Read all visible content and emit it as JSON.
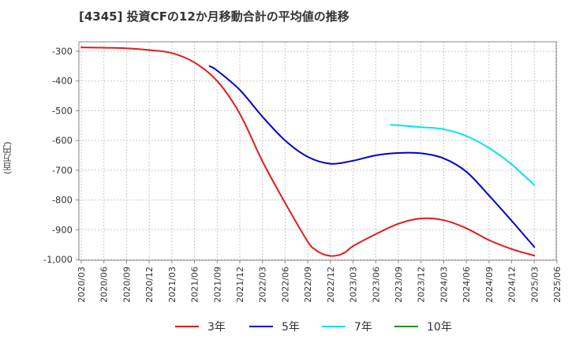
{
  "chart_data": {
    "type": "line",
    "title": "[4345]  投資CFの12か月移動合計の平均値の推移",
    "ylabel": "(百万円)",
    "ylim": [
      -1000,
      -270
    ],
    "yticks": [
      -300,
      -400,
      -500,
      -600,
      -700,
      -800,
      -900,
      -1000
    ],
    "ytick_labels": [
      "-300",
      "-400",
      "-500",
      "-600",
      "-700",
      "-800",
      "-900",
      "-1,000"
    ],
    "x_labels": [
      "2020/03",
      "2020/06",
      "2020/09",
      "2020/12",
      "2021/03",
      "2021/06",
      "2021/09",
      "2021/12",
      "2022/03",
      "2022/06",
      "2022/09",
      "2022/12",
      "2023/03",
      "2023/06",
      "2023/09",
      "2023/12",
      "2024/03",
      "2024/06",
      "2024/09",
      "2024/12",
      "2025/03",
      "2025/06"
    ],
    "grid": true,
    "legend_position": "bottom",
    "series": [
      {
        "name": "3年",
        "color": "#e31a1c",
        "points": [
          [
            "2020/03",
            -287
          ],
          [
            "2020/06",
            -288
          ],
          [
            "2020/09",
            -290
          ],
          [
            "2020/12",
            -296
          ],
          [
            "2021/03",
            -306
          ],
          [
            "2021/06",
            -338
          ],
          [
            "2021/09",
            -400
          ],
          [
            "2021/12",
            -510
          ],
          [
            "2022/03",
            -670
          ],
          [
            "2022/06",
            -810
          ],
          [
            "2022/09",
            -940
          ],
          [
            "2022/10",
            -967
          ],
          [
            "2022/11",
            -982
          ],
          [
            "2022/12",
            -988
          ],
          [
            "2023/01",
            -986
          ],
          [
            "2023/02",
            -975
          ],
          [
            "2023/03",
            -955
          ],
          [
            "2023/06",
            -915
          ],
          [
            "2023/09",
            -880
          ],
          [
            "2023/12",
            -862
          ],
          [
            "2024/03",
            -868
          ],
          [
            "2024/06",
            -895
          ],
          [
            "2024/09",
            -935
          ],
          [
            "2024/12",
            -965
          ],
          [
            "2025/03",
            -987
          ]
        ]
      },
      {
        "name": "5年",
        "color": "#0000cc",
        "points": [
          [
            "2021/08",
            -350
          ],
          [
            "2021/09",
            -365
          ],
          [
            "2021/12",
            -430
          ],
          [
            "2022/03",
            -520
          ],
          [
            "2022/06",
            -600
          ],
          [
            "2022/09",
            -655
          ],
          [
            "2022/12",
            -678
          ],
          [
            "2023/03",
            -668
          ],
          [
            "2023/06",
            -650
          ],
          [
            "2023/09",
            -642
          ],
          [
            "2023/12",
            -643
          ],
          [
            "2024/03",
            -660
          ],
          [
            "2024/06",
            -705
          ],
          [
            "2024/09",
            -785
          ],
          [
            "2024/12",
            -870
          ],
          [
            "2025/03",
            -958
          ]
        ]
      },
      {
        "name": "7年",
        "color": "#00e5ee",
        "points": [
          [
            "2023/08",
            -547
          ],
          [
            "2023/09",
            -549
          ],
          [
            "2023/12",
            -555
          ],
          [
            "2024/03",
            -562
          ],
          [
            "2024/06",
            -585
          ],
          [
            "2024/09",
            -625
          ],
          [
            "2024/12",
            -680
          ],
          [
            "2025/03",
            -750
          ]
        ]
      },
      {
        "name": "10年",
        "color": "#228b22",
        "points": []
      }
    ]
  }
}
